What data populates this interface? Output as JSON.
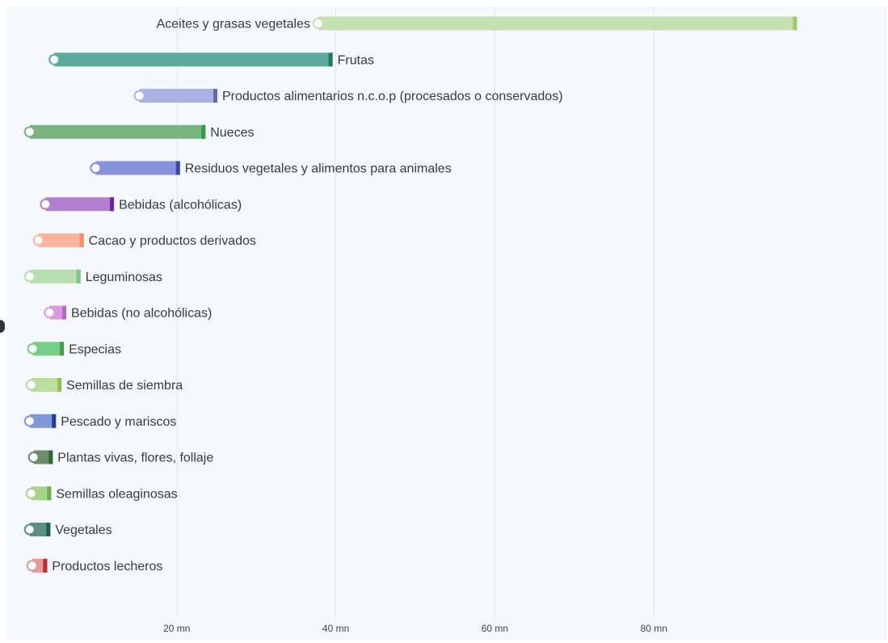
{
  "chart_data": {
    "type": "bar",
    "subtype": "horizontal-range-dumbbell",
    "title": "",
    "xlabel": "",
    "ylabel": "",
    "xlim": [
      0,
      110
    ],
    "grid": true,
    "legend": "none",
    "x_ticks": [
      {
        "value": 20,
        "label": "20 mn"
      },
      {
        "value": 40,
        "label": "40 mn"
      },
      {
        "value": 60,
        "label": "60 mn"
      },
      {
        "value": 80,
        "label": "80 mn"
      }
    ],
    "categories": [
      "Aceites y grasas vegetales",
      "Frutas",
      "Productos alimentarios n.c.o.p (procesados o conservados)",
      "Nueces",
      "Residuos vegetales y alimentos para animales",
      "Bebidas (alcohólicas)",
      "Cacao y productos derivados",
      "Leguminosas",
      "Bebidas (no alcohólicas)",
      "Especias",
      "Semillas de siembra",
      "Pescado y mariscos",
      "Plantas vivas, flores, follaje",
      "Semillas oleaginosas",
      "Vegetales",
      "Productos lecheros"
    ],
    "series": [
      {
        "values_start": [
          37.8,
          4.6,
          15.3,
          1.5,
          9.8,
          3.5,
          2.6,
          1.5,
          4.0,
          1.9,
          1.7,
          1.5,
          2.0,
          1.7,
          1.5,
          1.8
        ]
      },
      {
        "values_end": [
          98.0,
          39.6,
          25.1,
          23.6,
          20.4,
          12.1,
          8.3,
          7.9,
          6.1,
          5.8,
          5.5,
          4.8,
          4.4,
          4.2,
          4.1,
          3.7
        ]
      }
    ],
    "colors": [
      "#c5e0b0",
      "#5aab9d",
      "#aab4e4",
      "#7bb47e",
      "#8592dd",
      "#b07fd0",
      "#fcb59a",
      "#b8ddb0",
      "#d89be0",
      "#76cd8a",
      "#b9df9c",
      "#7e9ad6",
      "#6f8c6a",
      "#a5d48a",
      "#5c8f7d",
      "#e49a9a"
    ],
    "end_marker_colors": [
      "#9ccc65",
      "#1a7a68",
      "#5c6bc0",
      "#2e9e3f",
      "#3949ab",
      "#7b1fa2",
      "#ff8a65",
      "#81c784",
      "#ba68c8",
      "#43a047",
      "#8bc34a",
      "#1e3f9e",
      "#2e6b2e",
      "#6ab04c",
      "#1f5f4f",
      "#c62828"
    ]
  }
}
